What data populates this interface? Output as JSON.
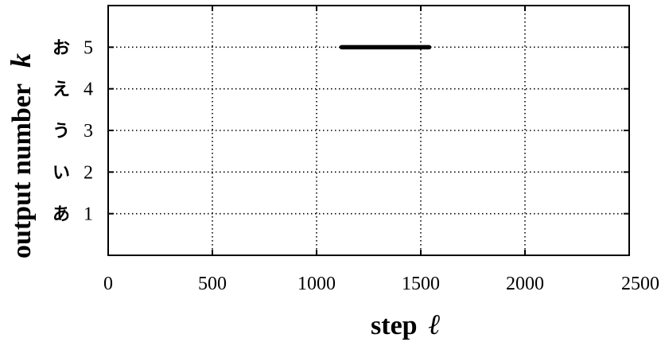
{
  "chart_data": {
    "type": "line",
    "xlabel": "step",
    "xlabel_var": "ℓ",
    "ylabel": "output number",
    "ylabel_var": "k",
    "xlim": [
      0,
      2500
    ],
    "ylim": [
      0,
      6
    ],
    "x_ticks": [
      0,
      500,
      1000,
      1500,
      2000,
      2500
    ],
    "x_tick_labels": [
      "0",
      "500",
      "1000",
      "1500",
      "2000",
      "2500"
    ],
    "y_ticks": [
      1,
      2,
      3,
      4,
      5
    ],
    "y_tick_labels": [
      "1",
      "2",
      "3",
      "4",
      "5"
    ],
    "y_category_labels": [
      "あ",
      "い",
      "う",
      "え",
      "お"
    ],
    "grid": true,
    "series": [
      {
        "points": [
          [
            1120,
            5
          ],
          [
            1540,
            5
          ]
        ]
      }
    ]
  }
}
